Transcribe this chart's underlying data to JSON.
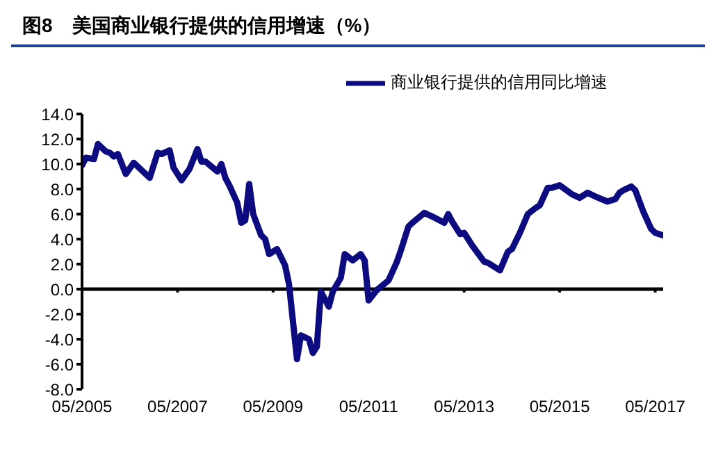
{
  "chart_data": {
    "type": "line",
    "title": "图8　美国商业银行提供的信用增速（%）",
    "x": [
      "2005-05",
      "2005-06",
      "2005-08",
      "2005-09",
      "2005-11",
      "2005-12",
      "2006-01",
      "2006-02",
      "2006-04",
      "2006-06",
      "2006-10",
      "2006-12",
      "2007-01",
      "2007-03",
      "2007-04",
      "2007-06",
      "2007-08",
      "2007-10",
      "2007-11",
      "2007-12",
      "2008-03",
      "2008-04",
      "2008-05",
      "2008-06",
      "2008-08",
      "2008-09",
      "2008-10",
      "2008-11",
      "2008-12",
      "2009-02",
      "2009-03",
      "2009-04",
      "2009-06",
      "2009-08",
      "2009-09",
      "2009-11",
      "2009-12",
      "2010-02",
      "2010-03",
      "2010-04",
      "2010-05",
      "2010-07",
      "2010-08",
      "2010-10",
      "2010-11",
      "2011-01",
      "2011-03",
      "2011-04",
      "2011-05",
      "2011-07",
      "2011-10",
      "2011-12",
      "2012-01",
      "2012-03",
      "2012-04",
      "2012-07",
      "2012-09",
      "2012-12",
      "2013-01",
      "2013-02",
      "2013-04",
      "2013-05",
      "2013-07",
      "2013-10",
      "2013-11",
      "2014-02",
      "2014-04",
      "2014-05",
      "2014-07",
      "2014-09",
      "2014-11",
      "2014-12",
      "2015-02",
      "2015-03",
      "2015-05",
      "2015-08",
      "2015-10",
      "2015-12",
      "2016-02",
      "2016-05",
      "2016-07",
      "2016-08",
      "2016-09",
      "2016-11",
      "2016-12",
      "2017-02",
      "2017-04",
      "2017-05",
      "2017-07"
    ],
    "series": [
      {
        "name": "商业银行提供的信用同比增速",
        "color": "#0c0c80",
        "values": [
          9.9,
          10.5,
          10.4,
          11.6,
          11.0,
          10.9,
          10.6,
          10.8,
          9.2,
          10.1,
          8.9,
          10.9,
          10.8,
          11.1,
          9.7,
          8.7,
          9.6,
          11.2,
          10.2,
          10.2,
          9.4,
          10.0,
          8.9,
          8.3,
          6.9,
          5.3,
          5.5,
          8.4,
          6.0,
          4.3,
          4.0,
          2.8,
          3.2,
          1.9,
          0.4,
          -5.6,
          -3.7,
          -4.0,
          -5.1,
          -4.6,
          -0.2,
          -1.4,
          -0.2,
          0.9,
          2.8,
          2.3,
          2.8,
          2.3,
          -0.9,
          -0.1,
          0.7,
          2.1,
          3.0,
          5.0,
          5.3,
          6.1,
          5.8,
          5.3,
          6.0,
          5.4,
          4.4,
          4.5,
          3.5,
          2.2,
          2.1,
          1.5,
          3.0,
          3.2,
          4.5,
          6.0,
          6.5,
          6.7,
          8.1,
          8.1,
          8.3,
          7.6,
          7.3,
          7.7,
          7.4,
          7.0,
          7.2,
          7.7,
          7.9,
          8.2,
          7.9,
          6.2,
          4.8,
          4.5,
          4.3
        ]
      }
    ],
    "xlim": [
      "2005-05",
      "2017-07"
    ],
    "xticks": [
      {
        "value": "2005-05",
        "label": "05/2005"
      },
      {
        "value": "2007-05",
        "label": "05/2007"
      },
      {
        "value": "2009-05",
        "label": "05/2009"
      },
      {
        "value": "2011-05",
        "label": "05/2011"
      },
      {
        "value": "2013-05",
        "label": "05/2013"
      },
      {
        "value": "2015-05",
        "label": "05/2015"
      },
      {
        "value": "2017-05",
        "label": "05/2017"
      }
    ],
    "ylim": [
      -8,
      14
    ],
    "yticks": [
      {
        "value": -8,
        "label": "-8.0"
      },
      {
        "value": -6,
        "label": "-6.0"
      },
      {
        "value": -4,
        "label": "-4.0"
      },
      {
        "value": -2,
        "label": "-2.0"
      },
      {
        "value": 0,
        "label": "0.0"
      },
      {
        "value": 2,
        "label": "2.0"
      },
      {
        "value": 4,
        "label": "4.0"
      },
      {
        "value": 6,
        "label": "6.0"
      },
      {
        "value": 8,
        "label": "8.0"
      },
      {
        "value": 10,
        "label": "10.0"
      },
      {
        "value": 12,
        "label": "12.0"
      },
      {
        "value": 14,
        "label": "14.0"
      }
    ],
    "legend": "top right",
    "marker": "none",
    "line_style": "solid"
  }
}
